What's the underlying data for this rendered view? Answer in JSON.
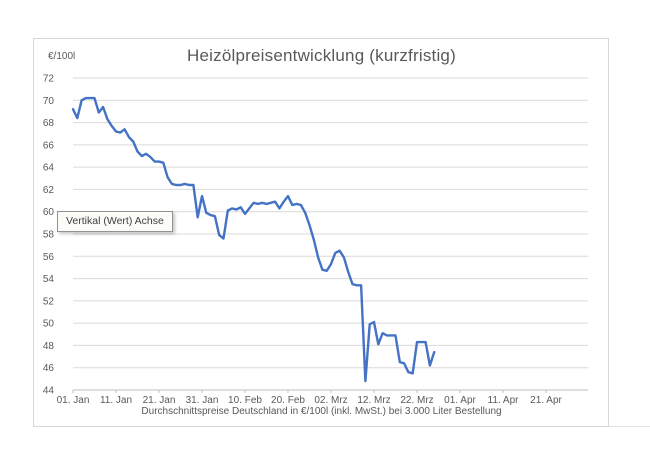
{
  "chart": {
    "title": "Heizölpreisentwicklung (kurzfristig)",
    "y_axis_unit": "€/100l",
    "caption": "Durchschnittspreise Deutschland in €/100l (inkl. MwSt.) bei 3.000 Liter Bestellung",
    "tooltip": "Vertikal (Wert) Achse"
  },
  "colors": {
    "line": "#4472C4",
    "gridline": "#D9D9D9",
    "axis_line": "#BFBFBF",
    "text": "#595959",
    "title_text": "#595959",
    "chart_border": "#D7D7D7"
  },
  "chart_data": {
    "type": "line",
    "title": "Heizölpreisentwicklung (kurzfristig)",
    "xlabel": "Durchschnittspreise Deutschland in €/100l (inkl. MwSt.) bei 3.000 Liter Bestellung",
    "ylabel": "€/100l",
    "ylim": [
      44,
      72
    ],
    "y_tick_step": 2,
    "y_ticks": [
      72,
      70,
      68,
      66,
      64,
      62,
      60,
      58,
      56,
      54,
      52,
      50,
      48,
      46,
      44
    ],
    "x_tick_labels": [
      "01. Jan",
      "11. Jan",
      "21. Jan",
      "31. Jan",
      "10. Feb",
      "20. Feb",
      "02. Mrz",
      "12. Mrz",
      "22. Mrz",
      "01. Apr",
      "11. Apr",
      "21. Apr"
    ],
    "x_tick_days": [
      1,
      11,
      21,
      31,
      41,
      51,
      61,
      71,
      81,
      91,
      101,
      111
    ],
    "x_axis_day_range": [
      1,
      121
    ],
    "grid": "horizontal",
    "legend": "none",
    "series": [
      {
        "start_day": 1,
        "start_label": "01. Jan",
        "end_label": "26. Mrz",
        "values": [
          69.2,
          68.4,
          70.0,
          70.2,
          70.2,
          70.2,
          68.9,
          69.4,
          68.3,
          67.7,
          67.2,
          67.1,
          67.4,
          66.7,
          66.3,
          65.4,
          65.0,
          65.2,
          64.9,
          64.5,
          64.5,
          64.4,
          63.1,
          62.5,
          62.4,
          62.4,
          62.5,
          62.4,
          62.4,
          59.5,
          61.4,
          59.9,
          59.7,
          59.6,
          57.9,
          57.6,
          60.1,
          60.3,
          60.2,
          60.4,
          59.8,
          60.3,
          60.8,
          60.7,
          60.8,
          60.7,
          60.8,
          60.9,
          60.3,
          60.9,
          61.4,
          60.6,
          60.7,
          60.6,
          59.9,
          58.8,
          57.5,
          55.9,
          54.8,
          54.7,
          55.3,
          56.3,
          56.5,
          55.9,
          54.6,
          53.5,
          53.4,
          53.4,
          44.8,
          49.9,
          50.1,
          48.1,
          49.1,
          48.9,
          48.9,
          48.9,
          46.5,
          46.4,
          45.6,
          45.5,
          48.3,
          48.3,
          48.3,
          46.2,
          47.4
        ]
      }
    ]
  }
}
